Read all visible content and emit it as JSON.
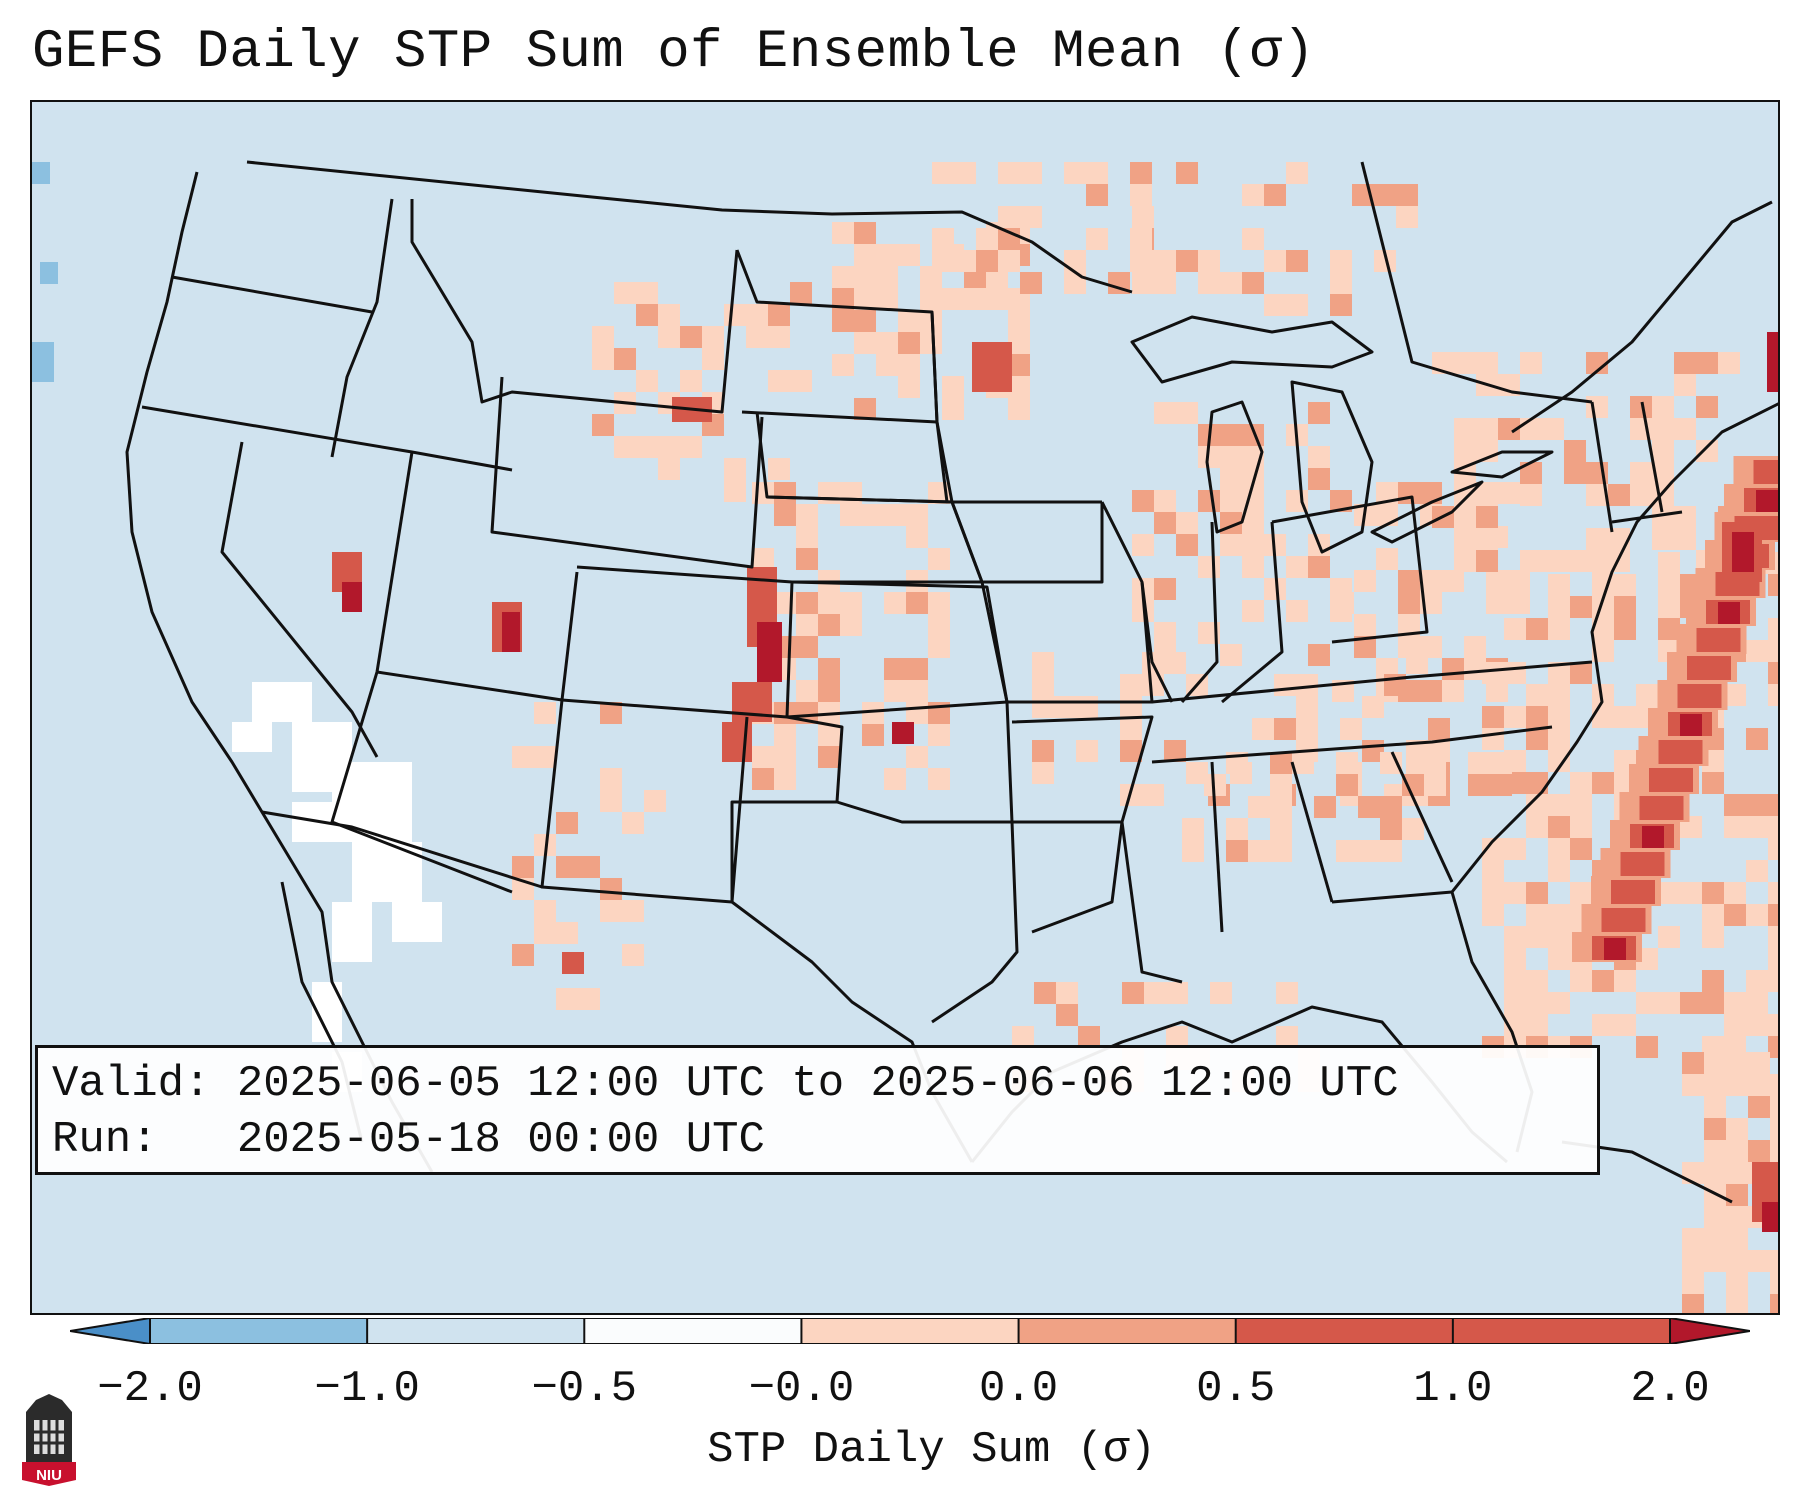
{
  "title": "GEFS Daily STP Sum of Ensemble Mean (σ)",
  "info": {
    "valid_line": "Valid: 2025-06-05 12:00 UTC to 2025-06-06 12:00 UTC",
    "run_line": "Run:   2025-05-18 00:00 UTC"
  },
  "colorbar": {
    "label": "STP Daily Sum (σ)",
    "ticks": [
      "−2.0",
      "−1.0",
      "−0.5",
      "−0.0",
      "0.0",
      "0.5",
      "1.0",
      "2.0"
    ],
    "colors": [
      "#4a8fc8",
      "#8cc0e0",
      "#d0e3ef",
      "#fafcfd",
      "#fcd5c1",
      "#f0a285",
      "#d5584a",
      "#b2182b"
    ]
  },
  "logo": {
    "text": "NIU"
  },
  "legend_colors": {
    "near_zero": "#d0e3ef",
    "zero": "#ffffff",
    "low_positive": "#fcd5c1",
    "mid_positive": "#f0a285",
    "high_positive": "#d5584a",
    "extreme_positive": "#b2182b",
    "low_negative": "#8cc0e0"
  }
}
